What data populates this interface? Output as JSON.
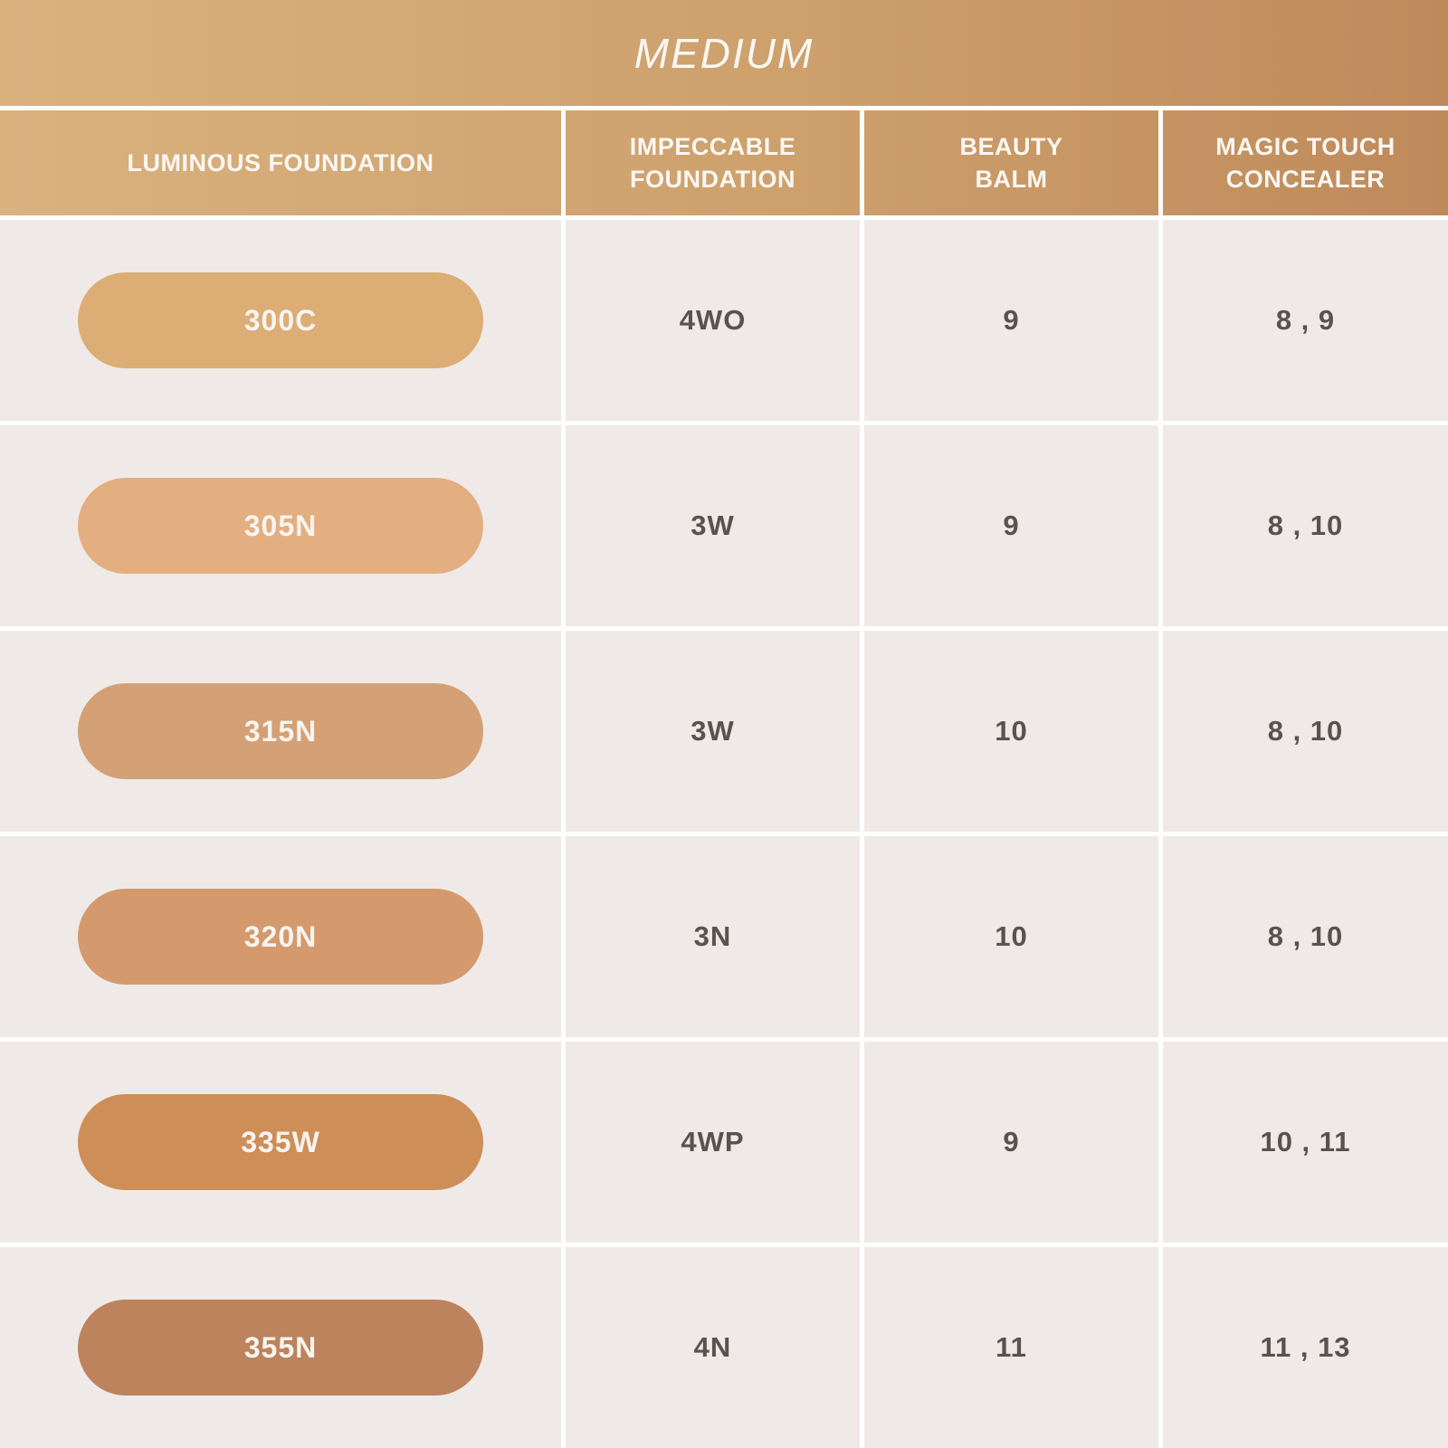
{
  "title": "MEDIUM",
  "chart_data": {
    "type": "table",
    "title": "MEDIUM",
    "columns": [
      "LUMINOUS FOUNDATION",
      "IMPECCABLE\nFOUNDATION",
      "BEAUTY\nBALM",
      "MAGIC TOUCH\nCONCEALER"
    ],
    "rows": [
      {
        "shade": "300C",
        "swatch_color": "#DCAD74",
        "impeccable_foundation": "4WO",
        "beauty_balm": "9",
        "magic_touch_concealer": "8 , 9"
      },
      {
        "shade": "305N",
        "swatch_color": "#E3AF81",
        "impeccable_foundation": "3W",
        "beauty_balm": "9",
        "magic_touch_concealer": "8 , 10"
      },
      {
        "shade": "315N",
        "swatch_color": "#D4A075",
        "impeccable_foundation": "3W",
        "beauty_balm": "10",
        "magic_touch_concealer": "8 , 10"
      },
      {
        "shade": "320N",
        "swatch_color": "#D49A6E",
        "impeccable_foundation": "3N",
        "beauty_balm": "10",
        "magic_touch_concealer": "8 , 10"
      },
      {
        "shade": "335W",
        "swatch_color": "#CD8E58",
        "impeccable_foundation": "4WP",
        "beauty_balm": "9",
        "magic_touch_concealer": "10 , 11"
      },
      {
        "shade": "355N",
        "swatch_color": "#BC835C",
        "impeccable_foundation": "4N",
        "beauty_balm": "11",
        "magic_touch_concealer": "11 , 13"
      }
    ]
  },
  "colors": {
    "gradient_left": "#D9B27E",
    "gradient_right": "#BF8A5B",
    "cell_background": "#EFEAE7",
    "separator": "#FFFFFF",
    "dark_text": "#57534F",
    "light_text": "#FAF7F3"
  }
}
